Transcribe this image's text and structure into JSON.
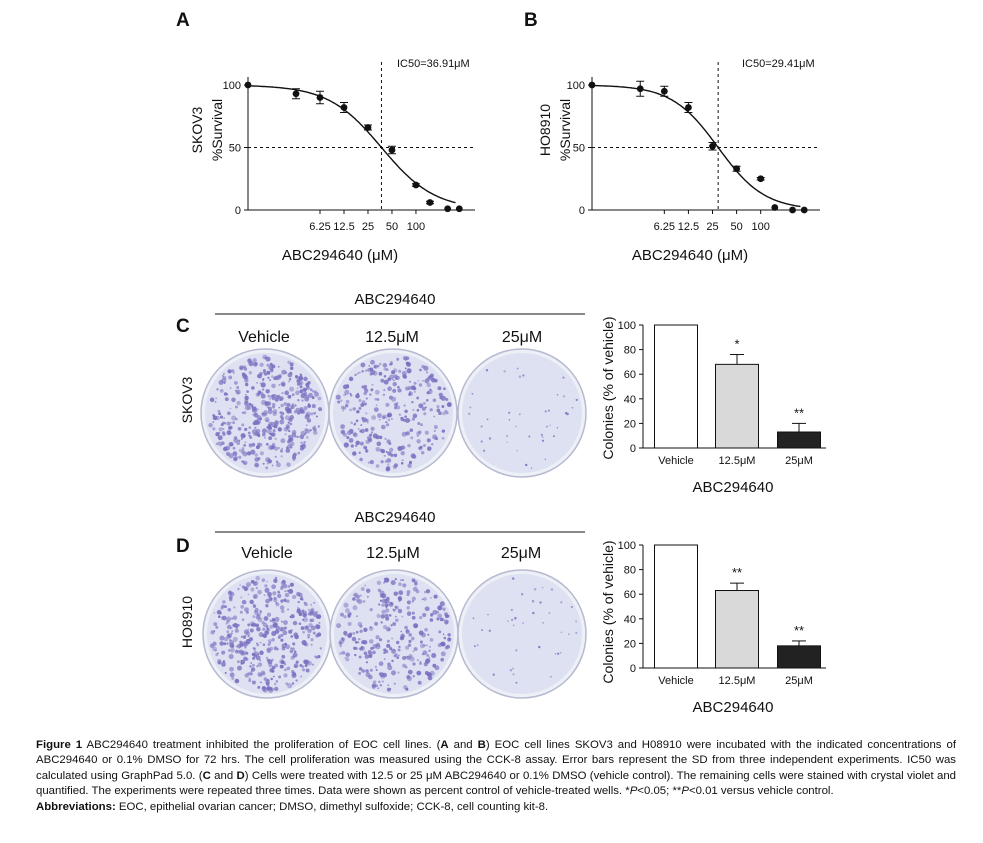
{
  "chart_data": [
    {
      "id": "A",
      "type": "line",
      "panel_label": "A",
      "cell_line": "SKOV3",
      "ylabel": "%Survival",
      "xlabel": "ABC294640 (μM)",
      "x_scale": "log",
      "x_tick_labels": [
        "6.25",
        "12.5",
        "25",
        "50",
        "100"
      ],
      "x_ticks": [
        6.25,
        12.5,
        25,
        50,
        100
      ],
      "y_tick_labels": [
        "0",
        "50",
        "100"
      ],
      "ylim": [
        0,
        100
      ],
      "ic50_label": "IC50=36.91μM",
      "ic50": 36.91,
      "points": [
        {
          "x": 0.78,
          "y": 100,
          "err": 0
        },
        {
          "x": 3.125,
          "y": 93,
          "err": 4
        },
        {
          "x": 6.25,
          "y": 90,
          "err": 5
        },
        {
          "x": 12.5,
          "y": 82,
          "err": 4
        },
        {
          "x": 25,
          "y": 66,
          "err": 2
        },
        {
          "x": 50,
          "y": 48,
          "err": 3
        },
        {
          "x": 100,
          "y": 20,
          "err": 1
        },
        {
          "x": 150,
          "y": 6,
          "err": 1
        },
        {
          "x": 250,
          "y": 1,
          "err": 0
        },
        {
          "x": 350,
          "y": 1,
          "err": 0
        }
      ],
      "fit": {
        "top": 100,
        "bottom": 0,
        "ic50": 36.91,
        "hill": 1.3
      }
    },
    {
      "id": "B",
      "type": "line",
      "panel_label": "B",
      "cell_line": "HO8910",
      "ylabel": "%Survival",
      "xlabel": "ABC294640 (μM)",
      "x_scale": "log",
      "x_tick_labels": [
        "6.25",
        "12.5",
        "25",
        "50",
        "100"
      ],
      "x_ticks": [
        6.25,
        12.5,
        25,
        50,
        100
      ],
      "y_tick_labels": [
        "0",
        "50",
        "100"
      ],
      "ylim": [
        0,
        100
      ],
      "ic50_label": "IC50=29.41μM",
      "ic50": 29.41,
      "points": [
        {
          "x": 0.78,
          "y": 100,
          "err": 0
        },
        {
          "x": 3.125,
          "y": 97,
          "err": 6
        },
        {
          "x": 6.25,
          "y": 95,
          "err": 4
        },
        {
          "x": 12.5,
          "y": 82,
          "err": 4
        },
        {
          "x": 25,
          "y": 51,
          "err": 3
        },
        {
          "x": 50,
          "y": 33,
          "err": 2
        },
        {
          "x": 100,
          "y": 25,
          "err": 1
        },
        {
          "x": 150,
          "y": 2,
          "err": 0
        },
        {
          "x": 250,
          "y": 0,
          "err": 0
        },
        {
          "x": 350,
          "y": 0,
          "err": 0
        }
      ],
      "fit": {
        "top": 100,
        "bottom": 0,
        "ic50": 29.41,
        "hill": 1.5
      }
    },
    {
      "id": "C",
      "type": "bar",
      "panel_label": "C",
      "cell_line": "SKOV3",
      "group_label": "ABC294640",
      "dish_labels": [
        "Vehicle",
        "12.5μM",
        "25μM"
      ],
      "categories": [
        "Vehicle",
        "12.5μM",
        "25μM"
      ],
      "values": [
        100,
        68,
        13
      ],
      "errors": [
        0,
        8,
        7
      ],
      "significance": [
        "",
        "*",
        "**"
      ],
      "bar_colors": [
        "#ffffff",
        "#d9d9d9",
        "#222222"
      ],
      "ylabel": "Colonies (% of vehicle)",
      "xlabel": "ABC294640",
      "y_tick_labels": [
        "0",
        "20",
        "40",
        "60",
        "80",
        "100"
      ],
      "ylim": [
        0,
        100
      ]
    },
    {
      "id": "D",
      "type": "bar",
      "panel_label": "D",
      "cell_line": "HO8910",
      "group_label": "ABC294640",
      "dish_labels": [
        "Vehicle",
        "12.5μM",
        "25μM"
      ],
      "categories": [
        "Vehicle",
        "12.5μM",
        "25μM"
      ],
      "values": [
        100,
        63,
        18
      ],
      "errors": [
        0,
        6,
        4
      ],
      "significance": [
        "",
        "**",
        "**"
      ],
      "bar_colors": [
        "#ffffff",
        "#d9d9d9",
        "#222222"
      ],
      "ylabel": "Colonies (% of vehicle)",
      "xlabel": "ABC294640",
      "y_tick_labels": [
        "0",
        "20",
        "40",
        "60",
        "80",
        "100"
      ],
      "ylim": [
        0,
        100
      ]
    }
  ],
  "dishes": {
    "stain_color": "#7b6fc0",
    "dish_fill": "#dcdff0",
    "rows": [
      {
        "id": "C",
        "densities": [
          "high",
          "medium",
          "low"
        ]
      },
      {
        "id": "D",
        "densities": [
          "high",
          "medium",
          "low"
        ]
      }
    ]
  },
  "caption": {
    "figure_label": "Figure 1",
    "text_1": " ABC294640 treatment inhibited the proliferation of EOC cell lines. (",
    "bold_A": "A",
    "text_2": " and ",
    "bold_B": "B",
    "text_3": ") EOC cell lines SKOV3 and H08910 were incubated with the indicated concentrations of ABC294640 or 0.1% DMSO for 72 hrs. The cell proliferation was measured using the CCK-8 assay. Error bars represent the SD from three independent experiments. IC50 was calculated using GraphPad 5.0. (",
    "bold_C": "C",
    "text_4": " and ",
    "bold_D": "D",
    "text_5": ") Cells were treated with 12.5 or 25 μM ABC294640 or 0.1% DMSO (vehicle control). The remaining cells were stained with crystal violet and quantified. The experiments were repeated three times. Data were shown as percent control of vehicle-treated wells. *",
    "italic_P1": "P",
    "text_6": "<0.05; **",
    "italic_P2": "P",
    "text_7": "<0.01 versus vehicle control.",
    "abbr_label": "Abbreviations:",
    "abbr_text": " EOC, epithelial ovarian cancer; DMSO, dimethyl sulfoxide; CCK-8, cell counting kit-8."
  }
}
